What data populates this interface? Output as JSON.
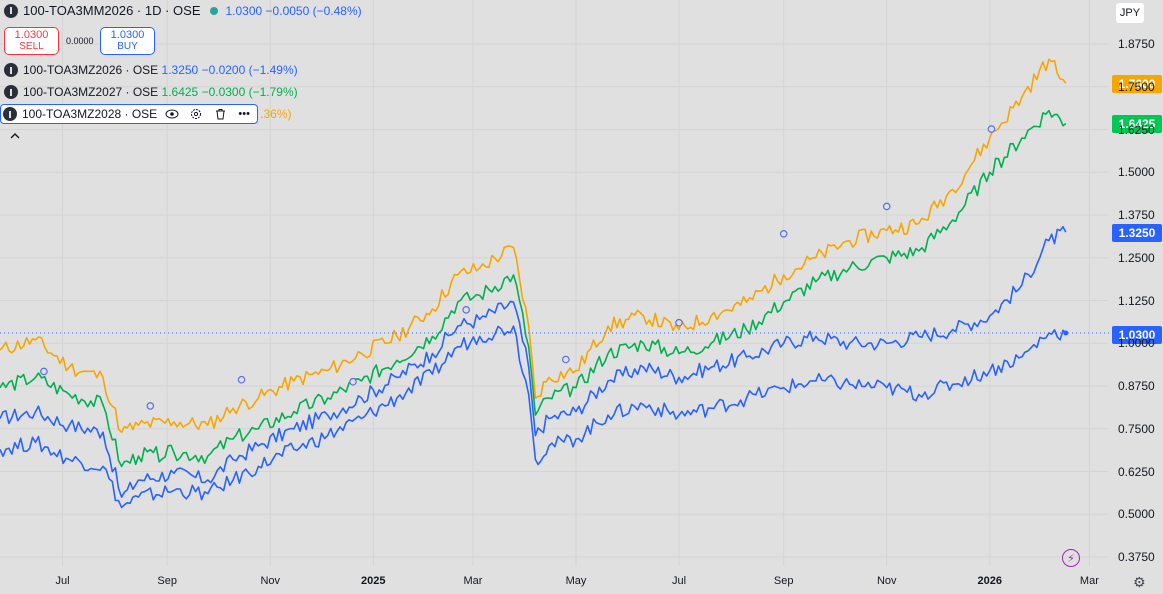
{
  "header": {
    "main_symbol": "100-TOA3MM2026 · 1D · OSE",
    "main_price": "1.0300",
    "main_change": "−0.0050 (−0.48%)",
    "sell_price": "1.0300",
    "sell_label": "SELL",
    "spread": "0.0000",
    "buy_price": "1.0300",
    "buy_label": "BUY",
    "currency": "JPY"
  },
  "legend": [
    {
      "symbol": "100-TOA3MZ2026 · OSE",
      "price": "1.3250",
      "change": "−0.0200 (−1.49%)",
      "color": "#2962ff"
    },
    {
      "symbol": "100-TOA3MZ2027 · OSE",
      "price": "1.6425",
      "change": "−0.0300 (−1.79%)",
      "color": "#00b050"
    },
    {
      "symbol": "100-TOA3MZ2028 · OSE",
      "change_tail": ".36%)",
      "color": "#f7a600"
    }
  ],
  "icons": [
    "eye-icon",
    "settings-icon",
    "trash-icon",
    "more-icon",
    "chevron-up-icon",
    "gear-icon",
    "flash-icon"
  ],
  "price_tags": {
    "orange": "1.7600",
    "green": "1.6425",
    "blue_upper": "1.3250",
    "blue_main": "1.0300"
  },
  "chart_data": {
    "type": "line",
    "x_tick_labels": [
      "Jul",
      "Sep",
      "Nov",
      "2025",
      "Mar",
      "May",
      "Jul",
      "Sep",
      "Nov",
      "2026",
      "Mar"
    ],
    "y_tick_labels": [
      "1.8750",
      "1.7500",
      "1.6250",
      "1.5000",
      "1.3750",
      "1.2500",
      "1.1250",
      "1.0000",
      "0.8750",
      "0.7500",
      "0.6250",
      "0.5000",
      "0.3750"
    ],
    "ylim": [
      0.34,
      1.96
    ],
    "x_domain": [
      "2024-05-25",
      "2026-03-12"
    ],
    "x": [
      "2024-05-25",
      "2024-06-15",
      "2024-07-05",
      "2024-07-25",
      "2024-08-05",
      "2024-08-15",
      "2024-09-05",
      "2024-09-25",
      "2024-10-10",
      "2024-10-25",
      "2024-11-15",
      "2024-12-05",
      "2024-12-25",
      "2025-01-15",
      "2025-02-05",
      "2025-02-20",
      "2025-03-05",
      "2025-03-25",
      "2025-04-03",
      "2025-04-07",
      "2025-04-15",
      "2025-05-01",
      "2025-05-20",
      "2025-06-10",
      "2025-07-01",
      "2025-07-20",
      "2025-08-10",
      "2025-09-01",
      "2025-09-20",
      "2025-10-10",
      "2025-11-01",
      "2025-11-20",
      "2025-12-10",
      "2026-01-01",
      "2026-01-20",
      "2026-02-05",
      "2026-02-15"
    ],
    "series": [
      {
        "name": "100-TOA3MZ2028",
        "color": "#f7a600",
        "values": [
          0.98,
          1.01,
          0.93,
          0.9,
          0.74,
          0.76,
          0.77,
          0.76,
          0.81,
          0.84,
          0.89,
          0.92,
          0.97,
          1.02,
          1.1,
          1.2,
          1.22,
          1.28,
          1.05,
          0.84,
          0.9,
          0.92,
          1.05,
          1.08,
          1.04,
          1.08,
          1.12,
          1.2,
          1.25,
          1.3,
          1.33,
          1.35,
          1.45,
          1.6,
          1.72,
          1.83,
          1.76
        ]
      },
      {
        "name": "100-TOA3MZ2027",
        "color": "#00b050",
        "values": [
          0.87,
          0.9,
          0.85,
          0.82,
          0.64,
          0.67,
          0.68,
          0.67,
          0.72,
          0.75,
          0.8,
          0.84,
          0.89,
          0.95,
          1.02,
          1.12,
          1.14,
          1.2,
          0.99,
          0.79,
          0.84,
          0.87,
          0.97,
          1.0,
          0.97,
          1.0,
          1.04,
          1.12,
          1.18,
          1.22,
          1.25,
          1.27,
          1.36,
          1.5,
          1.6,
          1.68,
          1.6425
        ]
      },
      {
        "name": "100-TOA3MZ2026",
        "color": "#2962ff",
        "values": [
          0.78,
          0.8,
          0.76,
          0.74,
          0.55,
          0.6,
          0.62,
          0.6,
          0.66,
          0.7,
          0.75,
          0.79,
          0.84,
          0.9,
          0.97,
          1.05,
          1.07,
          1.12,
          0.93,
          0.73,
          0.78,
          0.8,
          0.89,
          0.93,
          0.9,
          0.93,
          0.96,
          1.0,
          1.02,
          1.0,
          1.0,
          1.02,
          1.04,
          1.08,
          1.17,
          1.3,
          1.325
        ]
      },
      {
        "name": "100-TOA3MM2026",
        "color": "#2962ff",
        "values": [
          0.69,
          0.71,
          0.66,
          0.64,
          0.52,
          0.55,
          0.57,
          0.56,
          0.6,
          0.64,
          0.69,
          0.73,
          0.78,
          0.84,
          0.91,
          0.99,
          1.02,
          1.05,
          0.85,
          0.66,
          0.7,
          0.72,
          0.79,
          0.82,
          0.79,
          0.81,
          0.84,
          0.87,
          0.89,
          0.88,
          0.87,
          0.85,
          0.88,
          0.92,
          0.96,
          1.03,
          1.03
        ]
      }
    ],
    "marker_dates": [
      "2024-06-20",
      "2024-08-22",
      "2024-10-15",
      "2024-12-20",
      "2025-02-25",
      "2025-04-25",
      "2025-07-01",
      "2025-09-01",
      "2025-11-01",
      "2026-01-02"
    ],
    "reference_line": 1.03
  }
}
